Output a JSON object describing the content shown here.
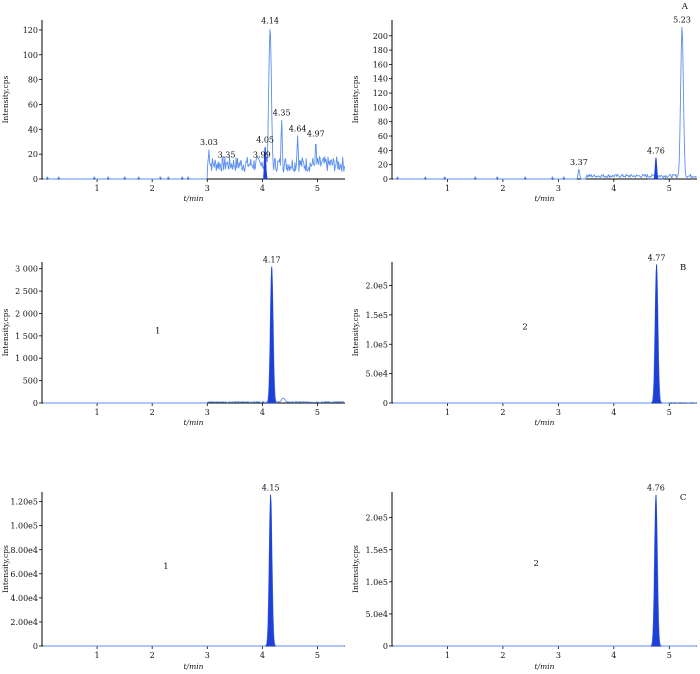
{
  "chart_data": [
    {
      "type": "line",
      "position": "top-left",
      "panel_label": "",
      "xlabel": "t/min",
      "ylabel": "Intensity,cps",
      "xlim": [
        0,
        5.5
      ],
      "ylim": [
        0,
        128
      ],
      "x_ticks": [
        1,
        2,
        3,
        4,
        5
      ],
      "y_ticks": [
        0,
        20,
        40,
        60,
        80,
        100,
        120
      ],
      "y_tick_labels": [
        "0",
        "20",
        "40",
        "60",
        "80",
        "100",
        "120"
      ],
      "compound_label": "",
      "peaks": [
        {
          "x": 3.03,
          "y": 24,
          "label": "3.03"
        },
        {
          "x": 3.35,
          "y": 14,
          "label": "3.35"
        },
        {
          "x": 3.99,
          "y": 14,
          "label": "3.99"
        },
        {
          "x": 4.05,
          "y": 26,
          "label": "4.05"
        },
        {
          "x": 4.14,
          "y": 122,
          "label": "4.14"
        },
        {
          "x": 4.35,
          "y": 48,
          "label": "4.35"
        },
        {
          "x": 4.64,
          "y": 35,
          "label": "4.64"
        },
        {
          "x": 4.97,
          "y": 31,
          "label": "4.97"
        }
      ],
      "filled": [
        {
          "x0": 4.02,
          "x1": 4.1,
          "x": 4.05,
          "y": 26
        }
      ],
      "noise_start": 3.0,
      "noise_level": 14,
      "baseline_blips": [
        0.1,
        0.3,
        0.95,
        1.2,
        1.5,
        1.75,
        2.15,
        2.3,
        2.55,
        2.65
      ]
    },
    {
      "type": "line",
      "position": "top-right",
      "panel_label": "A",
      "xlabel": "t/min",
      "ylabel": "Intensity,cps",
      "xlim": [
        0,
        5.5
      ],
      "ylim": [
        0,
        222
      ],
      "x_ticks": [
        1,
        2,
        3,
        4,
        5
      ],
      "y_ticks": [
        0,
        20,
        40,
        60,
        80,
        100,
        120,
        140,
        160,
        180,
        200
      ],
      "y_tick_labels": [
        "0",
        "20",
        "40",
        "60",
        "80",
        "100",
        "120",
        "140",
        "160",
        "180",
        "200"
      ],
      "compound_label": "",
      "peaks": [
        {
          "x": 3.37,
          "y": 14,
          "label": "3.37"
        },
        {
          "x": 4.76,
          "y": 30,
          "label": "4.76"
        },
        {
          "x": 5.23,
          "y": 213,
          "label": "5.23"
        }
      ],
      "filled": [
        {
          "x0": 4.62,
          "x1": 4.9,
          "x": 4.76,
          "y": 30
        }
      ],
      "noise_start": 3.5,
      "noise_level": 5,
      "baseline_blips": [
        0.1,
        0.6,
        0.95,
        1.5,
        1.9,
        2.4,
        2.9,
        3.1
      ]
    },
    {
      "type": "line",
      "position": "middle-left",
      "panel_label": "",
      "xlabel": "t/min",
      "ylabel": "Intensity,cps",
      "xlim": [
        0,
        5.5
      ],
      "ylim": [
        0,
        3150
      ],
      "x_ticks": [
        1,
        2,
        3,
        4,
        5
      ],
      "y_ticks": [
        0,
        500,
        1000,
        1500,
        2000,
        2500,
        3000
      ],
      "y_tick_labels": [
        "0",
        "500",
        "1 000",
        "1 500",
        "2 000",
        "2 500",
        "3 000"
      ],
      "compound_label": "1",
      "compound_label_pos": [
        2.1,
        1550
      ],
      "peaks": [
        {
          "x": 4.17,
          "y": 3050,
          "label": "4.17"
        }
      ],
      "filled": [
        {
          "x0": 4.07,
          "x1": 4.27,
          "x": 4.17,
          "y": 3050
        }
      ],
      "secondary": [
        {
          "x": 4.38,
          "y": 110
        }
      ],
      "noise_start": 3.0,
      "noise_level": 25,
      "baseline_blips": []
    },
    {
      "type": "line",
      "position": "middle-right",
      "panel_label": "B",
      "xlabel": "t/min",
      "ylabel": "Intensity,cps",
      "xlim": [
        0,
        5.5
      ],
      "ylim": [
        0,
        240000
      ],
      "x_ticks": [
        1,
        2,
        3,
        4,
        5
      ],
      "y_ticks": [
        0,
        50000,
        100000,
        150000,
        200000
      ],
      "y_tick_labels": [
        "0",
        "5.0e4",
        "1.0e5",
        "1.5e5",
        "2.0e5"
      ],
      "compound_label": "2",
      "compound_label_pos": [
        2.4,
        125000
      ],
      "peaks": [
        {
          "x": 4.77,
          "y": 236000,
          "label": "4.77"
        }
      ],
      "filled": [
        {
          "x0": 4.67,
          "x1": 4.87,
          "x": 4.77,
          "y": 236000
        }
      ],
      "noise_start": 5.0,
      "noise_level": 600,
      "baseline_blips": []
    },
    {
      "type": "line",
      "position": "bottom-left",
      "panel_label": "",
      "xlabel": "t/min",
      "ylabel": "Intensity,cps",
      "xlim": [
        0,
        5.5
      ],
      "ylim": [
        0,
        128000
      ],
      "x_ticks": [
        1,
        2,
        3,
        4,
        5
      ],
      "y_ticks": [
        0,
        20000,
        40000,
        60000,
        80000,
        100000,
        120000
      ],
      "y_tick_labels": [
        "0",
        "2.00e4",
        "4.00e4",
        "6.00e4",
        "8.00e4",
        "1.00e5",
        "1.20e5"
      ],
      "compound_label": "1",
      "compound_label_pos": [
        2.25,
        64000
      ],
      "peaks": [
        {
          "x": 4.15,
          "y": 126000,
          "label": "4.15"
        }
      ],
      "filled": [
        {
          "x0": 4.07,
          "x1": 4.23,
          "x": 4.15,
          "y": 126000
        }
      ],
      "noise_start": 6.0,
      "noise_level": 0,
      "baseline_blips": []
    },
    {
      "type": "line",
      "position": "bottom-right",
      "panel_label": "C",
      "xlabel": "t/min",
      "ylabel": "Intensity,cps",
      "xlim": [
        0,
        5.5
      ],
      "ylim": [
        0,
        240000
      ],
      "x_ticks": [
        1,
        2,
        3,
        4,
        5
      ],
      "y_ticks": [
        0,
        50000,
        100000,
        150000,
        200000
      ],
      "y_tick_labels": [
        "0",
        "5.0e4",
        "1.0e5",
        "1.5e5",
        "2.0e5"
      ],
      "compound_label": "2",
      "compound_label_pos": [
        2.6,
        125000
      ],
      "peaks": [
        {
          "x": 4.76,
          "y": 236000,
          "label": "4.76"
        }
      ],
      "filled": [
        {
          "x0": 4.67,
          "x1": 4.86,
          "x": 4.76,
          "y": 236000
        }
      ],
      "noise_start": 6.0,
      "noise_level": 0,
      "baseline_blips": []
    }
  ]
}
